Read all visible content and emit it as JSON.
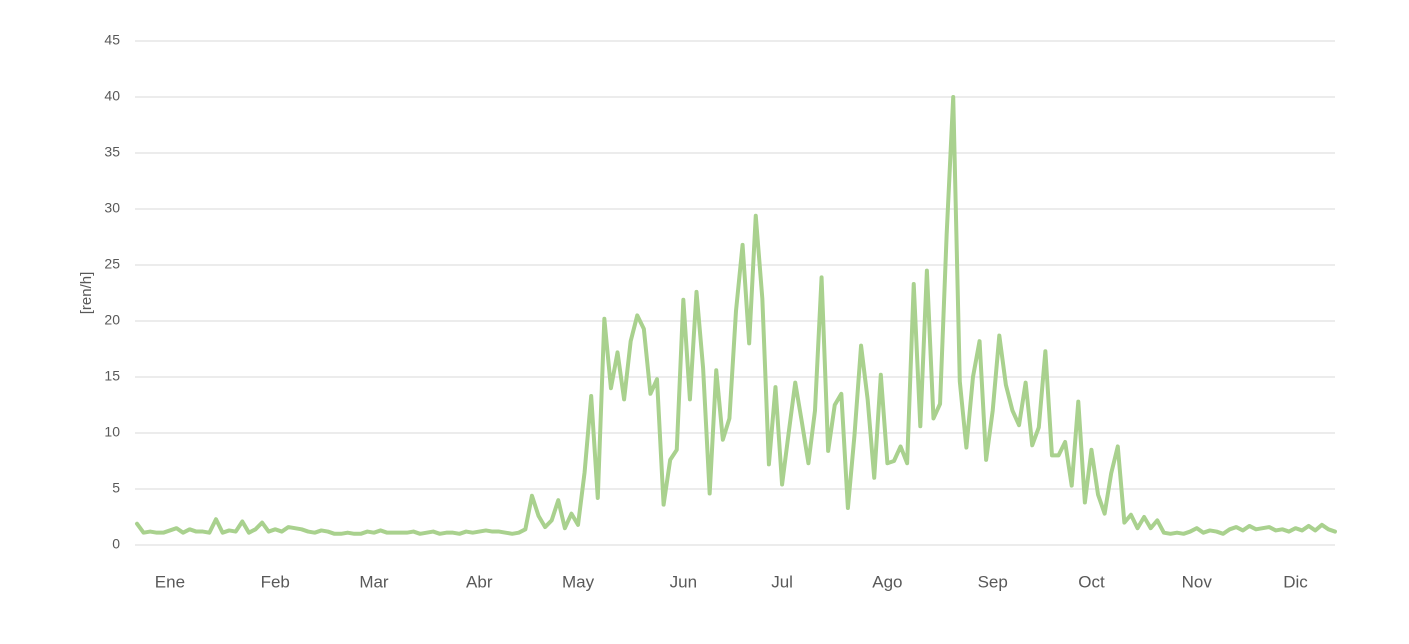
{
  "chart_data": {
    "type": "line",
    "y_label": "[ren/h]",
    "categories": [
      null,
      null,
      null,
      null,
      null,
      "Ene",
      null,
      null,
      null,
      null,
      null,
      null,
      null,
      null,
      null,
      null,
      null,
      null,
      null,
      null,
      null,
      "Feb",
      null,
      null,
      null,
      null,
      null,
      null,
      null,
      null,
      null,
      null,
      null,
      null,
      null,
      null,
      "Mar",
      null,
      null,
      null,
      null,
      null,
      null,
      null,
      null,
      null,
      null,
      null,
      null,
      null,
      null,
      null,
      "Abr",
      null,
      null,
      null,
      null,
      null,
      null,
      null,
      null,
      null,
      null,
      null,
      null,
      null,
      null,
      "May",
      null,
      null,
      null,
      null,
      null,
      null,
      null,
      null,
      null,
      null,
      null,
      null,
      null,
      null,
      null,
      "Jun",
      null,
      null,
      null,
      null,
      null,
      null,
      null,
      null,
      null,
      null,
      null,
      null,
      null,
      null,
      "Jul",
      null,
      null,
      null,
      null,
      null,
      null,
      null,
      null,
      null,
      null,
      null,
      null,
      null,
      null,
      null,
      "Ago",
      null,
      null,
      null,
      null,
      null,
      null,
      null,
      null,
      null,
      null,
      null,
      null,
      null,
      null,
      null,
      "Sep",
      null,
      null,
      null,
      null,
      null,
      null,
      null,
      null,
      null,
      null,
      null,
      null,
      null,
      null,
      "Oct",
      null,
      null,
      null,
      null,
      null,
      null,
      null,
      null,
      null,
      null,
      null,
      null,
      null,
      null,
      null,
      "Nov",
      null,
      null,
      null,
      null,
      null,
      null,
      null,
      null,
      null,
      null,
      null,
      null,
      null,
      null,
      "Dic",
      null,
      null,
      null,
      null,
      null,
      null
    ],
    "series": [
      {
        "color": "#a9d18e",
        "values": [
          1.9,
          1.1,
          1.2,
          1.1,
          1.1,
          1.3,
          1.5,
          1.1,
          1.4,
          1.2,
          1.2,
          1.1,
          2.3,
          1.1,
          1.3,
          1.2,
          2.1,
          1.1,
          1.4,
          2.0,
          1.2,
          1.4,
          1.2,
          1.6,
          1.5,
          1.4,
          1.2,
          1.1,
          1.3,
          1.2,
          1.0,
          1.0,
          1.1,
          1.0,
          1.0,
          1.2,
          1.1,
          1.3,
          1.1,
          1.1,
          1.1,
          1.1,
          1.2,
          1.0,
          1.1,
          1.2,
          1.0,
          1.1,
          1.1,
          1.0,
          1.2,
          1.1,
          1.2,
          1.3,
          1.2,
          1.2,
          1.1,
          1.0,
          1.1,
          1.4,
          4.4,
          2.6,
          1.6,
          2.2,
          4.0,
          1.5,
          2.8,
          1.8,
          6.5,
          13.3,
          4.2,
          20.2,
          14,
          17.2,
          13,
          18.2,
          20.5,
          19.3,
          13.5,
          14.8,
          3.6,
          7.6,
          8.5,
          21.9,
          13,
          22.6,
          15.8,
          4.6,
          15.6,
          9.4,
          11.3,
          20.9,
          26.8,
          18,
          29.4,
          22,
          7.2,
          14.1,
          5.4,
          10,
          14.5,
          11,
          7.3,
          12,
          23.9,
          8.4,
          12.5,
          13.5,
          3.3,
          9.8,
          17.8,
          13,
          6,
          15.2,
          7.3,
          7.5,
          8.8,
          7.3,
          23.3,
          10.6,
          24.5,
          11.3,
          12.6,
          27.7,
          40,
          14.6,
          8.7,
          15,
          18.2,
          7.6,
          12,
          18.7,
          14.3,
          12,
          10.7,
          14.5,
          8.9,
          10.5,
          17.3,
          8,
          8,
          9.2,
          5.3,
          12.8,
          3.8,
          8.5,
          4.5,
          2.8,
          6.4,
          8.8,
          2,
          2.7,
          1.5,
          2.5,
          1.5,
          2.2,
          1.1,
          1.0,
          1.1,
          1.0,
          1.2,
          1.5,
          1.1,
          1.3,
          1.2,
          1.0,
          1.4,
          1.6,
          1.3,
          1.7,
          1.4,
          1.5,
          1.6,
          1.3,
          1.4,
          1.2,
          1.5,
          1.3,
          1.7,
          1.3,
          1.8,
          1.4,
          1.2
        ]
      }
    ],
    "ylim": [
      0,
      45
    ],
    "yticks": [
      0,
      5,
      10,
      15,
      20,
      25,
      30,
      35,
      40,
      45
    ],
    "grid": true
  }
}
